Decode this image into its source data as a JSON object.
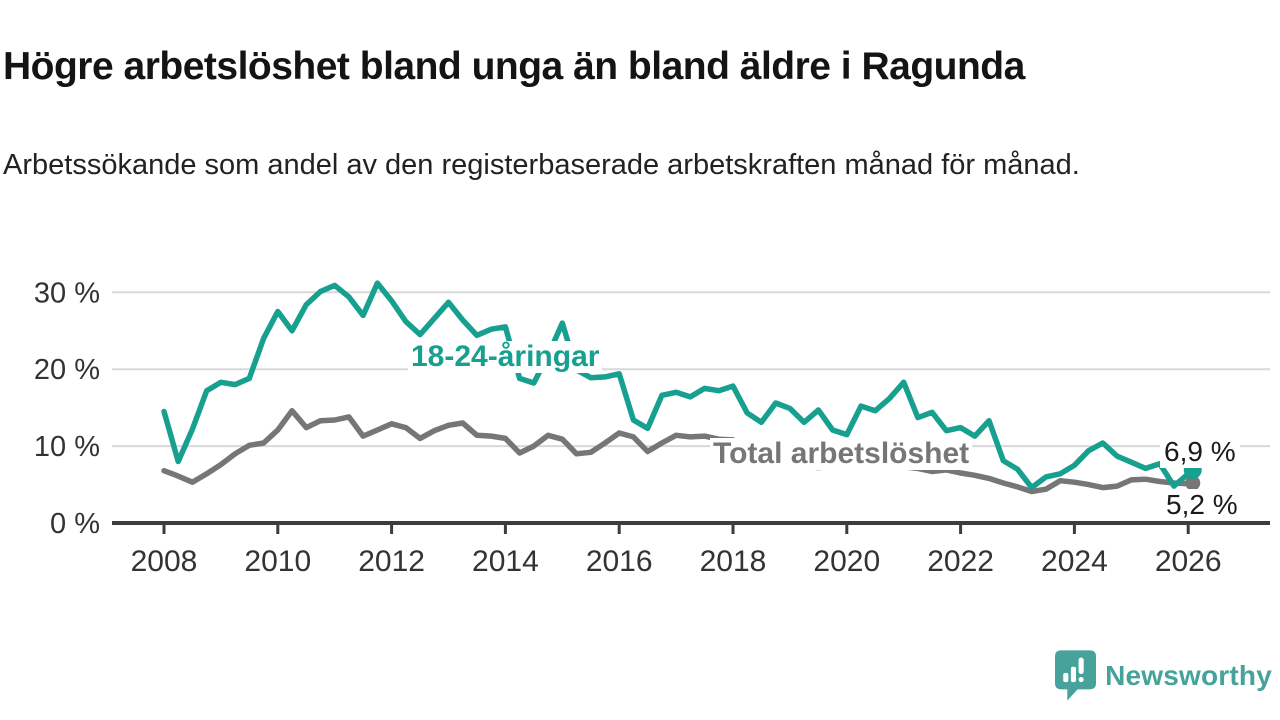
{
  "header": {
    "title": "Högre arbetslöshet bland unga än bland äldre i Ragunda",
    "subtitle": "Arbetssökande som andel av den registerbaserade arbetskraften månad för månad."
  },
  "colors": {
    "accent_teal": "#17A08F",
    "series_gray": "#767676",
    "grid": "#D8D8D8",
    "axis": "#3D3D3D",
    "tick_text": "#333333",
    "end_label_text": "#1A1A1A"
  },
  "logo": {
    "text": "Newsworthy",
    "color": "#46A29A"
  },
  "chart_data": {
    "type": "line",
    "title": "Högre arbetslöshet bland unga än bland äldre i Ragunda",
    "subtitle": "Arbetssökande som andel av den registerbaserade arbetskraften månad för månad.",
    "xlabel": "",
    "ylabel": "",
    "x_unit": "year (monthly data)",
    "xlim": [
      2007.6,
      2027.1
    ],
    "ylim": [
      0,
      34
    ],
    "grid": "horizontal",
    "legend_position": "direct-labels-on-chart",
    "xticks": [
      2008,
      2010,
      2012,
      2014,
      2016,
      2018,
      2020,
      2022,
      2024,
      2026
    ],
    "xtick_labels": [
      "2008",
      "2010",
      "2012",
      "2014",
      "2016",
      "2018",
      "2020",
      "2022",
      "2024",
      "2026"
    ],
    "yticks": [
      0,
      10,
      20,
      30
    ],
    "ytick_labels": [
      "0 %",
      "10 %",
      "20 %",
      "30 %"
    ],
    "series": [
      {
        "name": "18-24-åringar",
        "color": "#17A08F",
        "end_label": "6,9 %",
        "end_value": 6.9,
        "x": [
          2008,
          2008.25,
          2008.5,
          2008.75,
          2009,
          2009.25,
          2009.5,
          2009.75,
          2010,
          2010.25,
          2010.5,
          2010.75,
          2011,
          2011.25,
          2011.5,
          2011.75,
          2012,
          2012.25,
          2012.5,
          2012.75,
          2013,
          2013.25,
          2013.5,
          2013.75,
          2014,
          2014.25,
          2014.5,
          2014.75,
          2015,
          2015.25,
          2015.5,
          2015.75,
          2016,
          2016.25,
          2016.5,
          2016.75,
          2017,
          2017.25,
          2017.5,
          2017.75,
          2018,
          2018.25,
          2018.5,
          2018.75,
          2019,
          2019.25,
          2019.5,
          2019.75,
          2020,
          2020.25,
          2020.5,
          2020.75,
          2021,
          2021.25,
          2021.5,
          2021.75,
          2022,
          2022.25,
          2022.5,
          2022.75,
          2023,
          2023.25,
          2023.5,
          2023.75,
          2024,
          2024.25,
          2024.5,
          2024.75,
          2025,
          2025.25,
          2025.5,
          2025.75,
          2026,
          2026.08
        ],
        "values": [
          14.5,
          8.0,
          12.2,
          17.2,
          18.3,
          18.0,
          18.8,
          24.0,
          27.5,
          25.0,
          28.4,
          30.1,
          30.9,
          29.4,
          27.0,
          31.2,
          28.9,
          26.2,
          24.5,
          26.6,
          28.7,
          26.4,
          24.4,
          25.2,
          25.5,
          18.8,
          18.2,
          21.8,
          26.0,
          19.9,
          18.9,
          19.0,
          19.4,
          13.4,
          12.3,
          16.6,
          17.0,
          16.4,
          17.5,
          17.2,
          17.8,
          14.3,
          13.1,
          15.6,
          14.9,
          13.1,
          14.7,
          12.1,
          11.5,
          15.2,
          14.6,
          16.2,
          18.3,
          13.7,
          14.4,
          12.0,
          12.4,
          11.3,
          13.3,
          8.1,
          7.0,
          4.6,
          6.0,
          6.4,
          7.5,
          9.4,
          10.4,
          8.7,
          7.9,
          7.1,
          7.7,
          4.8,
          6.4,
          6.9
        ]
      },
      {
        "name": "Total arbetslöshet",
        "color": "#767676",
        "end_label": "5,2 %",
        "end_value": 5.2,
        "x": [
          2008,
          2008.25,
          2008.5,
          2008.75,
          2009,
          2009.25,
          2009.5,
          2009.75,
          2010,
          2010.25,
          2010.5,
          2010.75,
          2011,
          2011.25,
          2011.5,
          2011.75,
          2012,
          2012.25,
          2012.5,
          2012.75,
          2013,
          2013.25,
          2013.5,
          2013.75,
          2014,
          2014.25,
          2014.5,
          2014.75,
          2015,
          2015.25,
          2015.5,
          2015.75,
          2016,
          2016.25,
          2016.5,
          2016.75,
          2017,
          2017.25,
          2017.5,
          2017.75,
          2018,
          2018.25,
          2018.5,
          2018.75,
          2019,
          2019.25,
          2019.5,
          2019.75,
          2020,
          2020.25,
          2020.5,
          2020.75,
          2021,
          2021.25,
          2021.5,
          2021.75,
          2022,
          2022.25,
          2022.5,
          2022.75,
          2023,
          2023.25,
          2023.5,
          2023.75,
          2024,
          2024.25,
          2024.5,
          2024.75,
          2025,
          2025.25,
          2025.5,
          2025.75,
          2026,
          2026.08
        ],
        "values": [
          6.8,
          6.1,
          5.3,
          6.4,
          7.6,
          9.0,
          10.1,
          10.4,
          12.1,
          14.6,
          12.4,
          13.3,
          13.4,
          13.8,
          11.3,
          12.1,
          12.9,
          12.4,
          11.0,
          12.0,
          12.7,
          13.0,
          11.4,
          11.3,
          11.0,
          9.1,
          10.0,
          11.4,
          10.9,
          9.0,
          9.2,
          10.4,
          11.7,
          11.2,
          9.3,
          10.4,
          11.4,
          11.2,
          11.3,
          10.9,
          10.8,
          10.1,
          9.5,
          8.8,
          8.2,
          7.4,
          7.2,
          7.4,
          7.5,
          7.9,
          7.8,
          7.6,
          7.3,
          7.1,
          6.7,
          6.9,
          6.5,
          6.2,
          5.8,
          5.2,
          4.7,
          4.1,
          4.4,
          5.5,
          5.3,
          5.0,
          4.6,
          4.8,
          5.6,
          5.7,
          5.4,
          5.2,
          5.1,
          5.2
        ]
      }
    ]
  }
}
